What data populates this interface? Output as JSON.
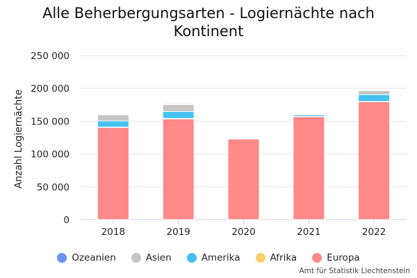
{
  "chart_data": {
    "type": "bar",
    "stacked": true,
    "title_lines": [
      "Alle Beherbergungsarten - Logiernächte nach",
      "Kontinent"
    ],
    "ylabel": "Anzahl Logiernächte",
    "categories": [
      "2018",
      "2019",
      "2020",
      "2021",
      "2022"
    ],
    "ylim": [
      0,
      250000
    ],
    "yticks": [
      0,
      50000,
      100000,
      150000,
      200000,
      250000
    ],
    "ytick_labels": [
      "0",
      "50 000",
      "100 000",
      "150 000",
      "200 000",
      "250 000"
    ],
    "grid": true,
    "legend_position": "bottom",
    "series": [
      {
        "name": "Europa",
        "color": "#ff8888",
        "values": [
          140500,
          153500,
          123000,
          157000,
          179500
        ]
      },
      {
        "name": "Afrika",
        "color": "#f7d06b",
        "values": [
          500,
          800,
          300,
          300,
          600
        ]
      },
      {
        "name": "Amerika",
        "color": "#45c2f0",
        "values": [
          9500,
          10500,
          1200,
          2500,
          10500
        ]
      },
      {
        "name": "Asien",
        "color": "#c4c4c4",
        "values": [
          9500,
          10500,
          1200,
          500,
          6000
        ]
      },
      {
        "name": "Ozeanien",
        "color": "#6d91f2",
        "values": [
          300,
          1200,
          100,
          100,
          400
        ]
      }
    ],
    "legend_order": [
      "Ozeanien",
      "Asien",
      "Amerika",
      "Afrika",
      "Europa"
    ]
  },
  "legend": [
    {
      "name": "Ozeanien",
      "color": "#6d91f2"
    },
    {
      "name": "Asien",
      "color": "#c4c4c4"
    },
    {
      "name": "Amerika",
      "color": "#45c2f0"
    },
    {
      "name": "Afrika",
      "color": "#f7d06b"
    },
    {
      "name": "Europa",
      "color": "#ff8888"
    }
  ],
  "credit": "Amt für Statistik Liechtenstein"
}
